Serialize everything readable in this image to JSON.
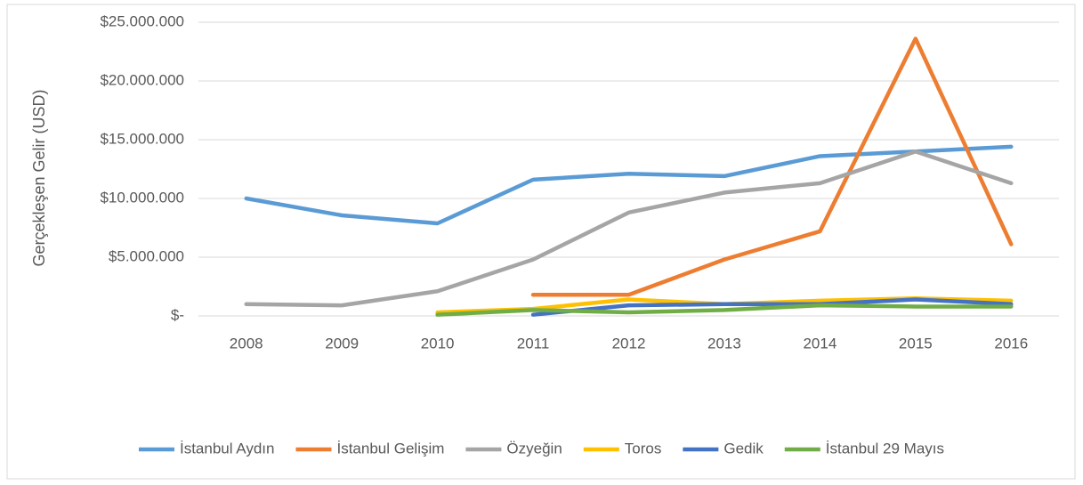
{
  "chart_data": {
    "type": "line",
    "y_label": "Gerçekleşen Gelir (USD)",
    "categories": [
      "2008",
      "2009",
      "2010",
      "2011",
      "2012",
      "2013",
      "2014",
      "2015",
      "2016"
    ],
    "series": [
      {
        "name": "İstanbul Aydın",
        "color": "#5b9bd5",
        "values": [
          10000000,
          8560000,
          7880000,
          11600000,
          12100000,
          11900000,
          13600000,
          14000000,
          14400000
        ]
      },
      {
        "name": "İstanbul Gelişim",
        "color": "#ed7d31",
        "values": [
          null,
          null,
          null,
          1800000,
          1800000,
          4800000,
          7200000,
          23600000,
          6100000
        ]
      },
      {
        "name": "Özyeğin",
        "color": "#a5a5a5",
        "values": [
          1000000,
          900000,
          2100000,
          4800000,
          8800000,
          10500000,
          11300000,
          14000000,
          11300000
        ]
      },
      {
        "name": "Toros",
        "color": "#ffc000",
        "values": [
          null,
          null,
          300000,
          600000,
          1400000,
          1000000,
          1300000,
          1500000,
          1300000
        ]
      },
      {
        "name": "Gedik",
        "color": "#4472c4",
        "values": [
          null,
          null,
          null,
          100000,
          900000,
          1000000,
          1000000,
          1400000,
          1000000
        ]
      },
      {
        "name": "İstanbul 29 Mayıs",
        "color": "#70ad47",
        "values": [
          null,
          null,
          100000,
          500000,
          300000,
          500000,
          900000,
          800000,
          800000
        ]
      }
    ],
    "ylim": [
      0,
      25000000
    ],
    "yticks": [
      {
        "value": 0,
        "label": "$-"
      },
      {
        "value": 5000000,
        "label": "$5.000.000"
      },
      {
        "value": 10000000,
        "label": "$10.000.000"
      },
      {
        "value": 15000000,
        "label": "$15.000.000"
      },
      {
        "value": 20000000,
        "label": "$20.000.000"
      },
      {
        "value": 25000000,
        "label": "$25.000.000"
      }
    ],
    "grid": true,
    "legend": "bottom"
  }
}
